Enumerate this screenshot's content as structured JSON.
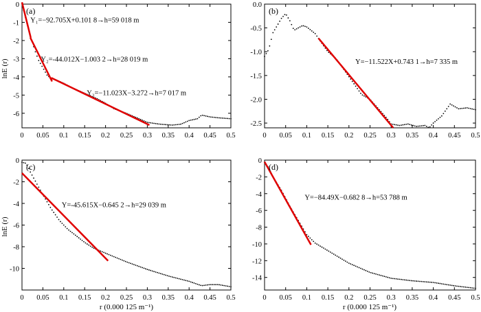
{
  "figure": {
    "x_axis_label": "r (0.000 125 m⁻¹)",
    "y_axis_label": "lnE (r)",
    "x_tick_labels": [
      "0",
      "0.05",
      "0.1",
      "0.15",
      "0.2",
      "0.25",
      "0.3",
      "0.35",
      "0.4",
      "0.45",
      "0.5"
    ]
  },
  "colors": {
    "fit_line": "#e00000",
    "points": "#000000",
    "frame": "#000000"
  },
  "chart_data": [
    {
      "type": "scatter",
      "panel": "(a)",
      "xlim": [
        0,
        0.5
      ],
      "ylim": [
        -6.8,
        0
      ],
      "y_ticks": [
        0,
        -1,
        -2,
        -3,
        -4,
        -5,
        -6
      ],
      "y_tick_labels": [
        "0",
        "-1",
        "-2",
        "-3",
        "-4",
        "-5",
        "-6"
      ],
      "points_anchor": [
        [
          0,
          0
        ],
        [
          0.01,
          -0.9
        ],
        [
          0.02,
          -1.7
        ],
        [
          0.03,
          -2.5
        ],
        [
          0.04,
          -3.1
        ],
        [
          0.05,
          -3.5
        ],
        [
          0.06,
          -3.9
        ],
        [
          0.07,
          -4.1
        ],
        [
          0.08,
          -4.15
        ],
        [
          0.1,
          -4.35
        ],
        [
          0.12,
          -4.6
        ],
        [
          0.15,
          -4.9
        ],
        [
          0.18,
          -5.2
        ],
        [
          0.2,
          -5.45
        ],
        [
          0.22,
          -5.75
        ],
        [
          0.25,
          -6.0
        ],
        [
          0.28,
          -6.3
        ],
        [
          0.3,
          -6.5
        ],
        [
          0.33,
          -6.6
        ],
        [
          0.36,
          -6.65
        ],
        [
          0.38,
          -6.6
        ],
        [
          0.4,
          -6.4
        ],
        [
          0.42,
          -6.3
        ],
        [
          0.43,
          -6.1
        ],
        [
          0.45,
          -6.2
        ],
        [
          0.47,
          -6.25
        ],
        [
          0.5,
          -6.3
        ]
      ],
      "fits": [
        {
          "x": [
            0,
            0.021
          ],
          "y": [
            0.1,
            -1.85
          ]
        },
        {
          "x": [
            0.02,
            0.072
          ],
          "y": [
            -1.85,
            -4.25
          ]
        },
        {
          "x": [
            0.07,
            0.305
          ],
          "y": [
            -4.05,
            -6.65
          ]
        }
      ],
      "annotations": [
        {
          "text": "Y₁=−92.705X+0.101 8→h=59 018 m",
          "x": 0.02,
          "y": -0.85
        },
        {
          "text": "Y₂=-44.012X−1.003 2→h=28 019 m",
          "x": 0.045,
          "y": -3.0
        },
        {
          "text": "Y₃=−11.023X−3.272→h=7 017 m",
          "x": 0.155,
          "y": -4.85
        }
      ]
    },
    {
      "type": "scatter",
      "panel": "(b)",
      "xlim": [
        0,
        0.5
      ],
      "ylim": [
        -2.6,
        0
      ],
      "y_ticks": [
        0,
        -0.5,
        -1,
        -1.5,
        -2,
        -2.5
      ],
      "y_tick_labels": [
        "0.0",
        "-0.5",
        "-1.0",
        "-1.5",
        "-2.0",
        "-2.5"
      ],
      "points_anchor": [
        [
          0,
          -1.1
        ],
        [
          0.01,
          -0.95
        ],
        [
          0.02,
          -0.6
        ],
        [
          0.03,
          -0.45
        ],
        [
          0.04,
          -0.3
        ],
        [
          0.05,
          -0.2
        ],
        [
          0.06,
          -0.35
        ],
        [
          0.07,
          -0.55
        ],
        [
          0.08,
          -0.5
        ],
        [
          0.09,
          -0.45
        ],
        [
          0.1,
          -0.48
        ],
        [
          0.11,
          -0.55
        ],
        [
          0.12,
          -0.62
        ],
        [
          0.13,
          -0.75
        ],
        [
          0.15,
          -1.0
        ],
        [
          0.17,
          -1.15
        ],
        [
          0.19,
          -1.4
        ],
        [
          0.21,
          -1.65
        ],
        [
          0.23,
          -1.9
        ],
        [
          0.25,
          -2.0
        ],
        [
          0.27,
          -2.2
        ],
        [
          0.29,
          -2.4
        ],
        [
          0.3,
          -2.52
        ],
        [
          0.32,
          -2.55
        ],
        [
          0.34,
          -2.52
        ],
        [
          0.36,
          -2.57
        ],
        [
          0.38,
          -2.55
        ],
        [
          0.39,
          -2.6
        ],
        [
          0.4,
          -2.5
        ],
        [
          0.42,
          -2.35
        ],
        [
          0.44,
          -2.1
        ],
        [
          0.46,
          -2.2
        ],
        [
          0.48,
          -2.18
        ],
        [
          0.5,
          -2.22
        ]
      ],
      "fits": [
        {
          "x": [
            0.128,
            0.305
          ],
          "y": [
            -0.72,
            -2.6
          ]
        }
      ],
      "annotations": [
        {
          "text": "Y=−11.522X+0.743 1→h=7 335 m",
          "x": 0.215,
          "y": -1.2
        }
      ]
    },
    {
      "type": "scatter",
      "panel": "(c)",
      "xlim": [
        0,
        0.5
      ],
      "ylim": [
        -12,
        0
      ],
      "y_ticks": [
        0,
        -2,
        -4,
        -6,
        -8,
        -10
      ],
      "y_tick_labels": [
        "0",
        "-2",
        "-4",
        "-6",
        "-8",
        "-10"
      ],
      "points_anchor": [
        [
          0,
          -0.2
        ],
        [
          0.01,
          -0.3
        ],
        [
          0.02,
          -1.1
        ],
        [
          0.03,
          -1.8
        ],
        [
          0.05,
          -3.2
        ],
        [
          0.07,
          -4.5
        ],
        [
          0.09,
          -5.6
        ],
        [
          0.11,
          -6.4
        ],
        [
          0.13,
          -7.0
        ],
        [
          0.15,
          -7.6
        ],
        [
          0.17,
          -8.1
        ],
        [
          0.2,
          -8.6
        ],
        [
          0.25,
          -9.4
        ],
        [
          0.3,
          -10.1
        ],
        [
          0.35,
          -10.7
        ],
        [
          0.4,
          -11.2
        ],
        [
          0.43,
          -11.6
        ],
        [
          0.45,
          -11.5
        ],
        [
          0.47,
          -11.5
        ],
        [
          0.5,
          -11.7
        ]
      ],
      "fits": [
        {
          "x": [
            0,
            0.206
          ],
          "y": [
            -1.2,
            -9.3
          ]
        }
      ],
      "annotations": [
        {
          "text": "Y=-45.615X−0.645 2→h=29 039 m",
          "x": 0.095,
          "y": -4.1
        }
      ]
    },
    {
      "type": "scatter",
      "panel": "(d)",
      "xlim": [
        0,
        0.5
      ],
      "ylim": [
        -15.5,
        0
      ],
      "y_ticks": [
        0,
        -2,
        -4,
        -6,
        -8,
        -10,
        -12,
        -14
      ],
      "y_tick_labels": [
        "0",
        "-2",
        "-4",
        "-6",
        "-8",
        "-10",
        "-12",
        "-14"
      ],
      "points_anchor": [
        [
          0,
          -0.3
        ],
        [
          0.01,
          -0.9
        ],
        [
          0.02,
          -2.0
        ],
        [
          0.04,
          -3.6
        ],
        [
          0.06,
          -5.5
        ],
        [
          0.08,
          -7.2
        ],
        [
          0.1,
          -8.9
        ],
        [
          0.12,
          -9.9
        ],
        [
          0.15,
          -10.8
        ],
        [
          0.2,
          -12.3
        ],
        [
          0.25,
          -13.4
        ],
        [
          0.3,
          -14.1
        ],
        [
          0.35,
          -14.4
        ],
        [
          0.4,
          -14.6
        ],
        [
          0.45,
          -15.0
        ],
        [
          0.5,
          -15.3
        ]
      ],
      "fits": [
        {
          "x": [
            0,
            0.11
          ],
          "y": [
            -0.2,
            -10.1
          ]
        }
      ],
      "annotations": [
        {
          "text": "Y=−84.49X−0.682 8→h=53 788 m",
          "x": 0.095,
          "y": -4.4
        }
      ]
    }
  ]
}
